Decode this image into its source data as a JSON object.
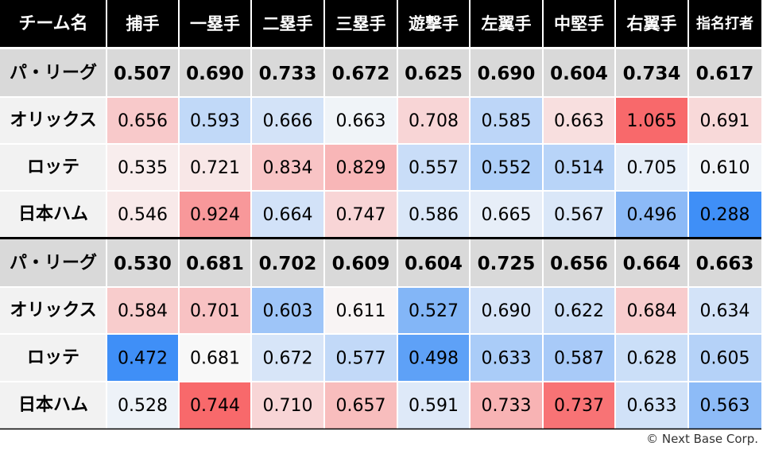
{
  "header": {
    "team_label": "チーム名",
    "positions": [
      "捕手",
      "一塁手",
      "二塁手",
      "三塁手",
      "遊撃手",
      "左翼手",
      "中堅手",
      "右翼手",
      "指名打者"
    ]
  },
  "chart_data": {
    "type": "heatmap",
    "x": [
      "捕手",
      "一塁手",
      "二塁手",
      "三塁手",
      "遊撃手",
      "左翼手",
      "中堅手",
      "右翼手",
      "指名打者"
    ],
    "tables": [
      {
        "league": {
          "label": "パ・リーグ",
          "values": [
            0.507,
            0.69,
            0.733,
            0.672,
            0.625,
            0.69,
            0.604,
            0.734,
            0.617
          ]
        },
        "rows": [
          {
            "team": "オリックス",
            "values": [
              0.656,
              0.593,
              0.666,
              0.663,
              0.708,
              0.585,
              0.663,
              1.065,
              0.691
            ]
          },
          {
            "team": "ロッテ",
            "values": [
              0.535,
              0.721,
              0.834,
              0.829,
              0.557,
              0.552,
              0.514,
              0.705,
              0.61
            ]
          },
          {
            "team": "日本ハム",
            "values": [
              0.546,
              0.924,
              0.664,
              0.747,
              0.586,
              0.665,
              0.567,
              0.496,
              0.288
            ]
          }
        ]
      },
      {
        "league": {
          "label": "パ・リーグ",
          "values": [
            0.53,
            0.681,
            0.702,
            0.609,
            0.604,
            0.725,
            0.656,
            0.664,
            0.663
          ]
        },
        "rows": [
          {
            "team": "オリックス",
            "values": [
              0.584,
              0.701,
              0.603,
              0.611,
              0.527,
              0.69,
              0.622,
              0.684,
              0.634
            ]
          },
          {
            "team": "ロッテ",
            "values": [
              0.472,
              0.681,
              0.672,
              0.577,
              0.498,
              0.633,
              0.587,
              0.628,
              0.605
            ]
          },
          {
            "team": "日本ハム",
            "values": [
              0.528,
              0.744,
              0.71,
              0.657,
              0.591,
              0.733,
              0.737,
              0.633,
              0.563
            ]
          }
        ]
      }
    ]
  },
  "colors": {
    "header_bg": "#000000",
    "header_text": "#ffffff",
    "league_bg": "#d9d9d9",
    "team_bg": "#f2f2f2",
    "hot": "#f8696b",
    "cold": "#3f8ff7",
    "neutral": "#f8f8f8"
  },
  "footer": {
    "copyright": "© Next Base Corp."
  }
}
